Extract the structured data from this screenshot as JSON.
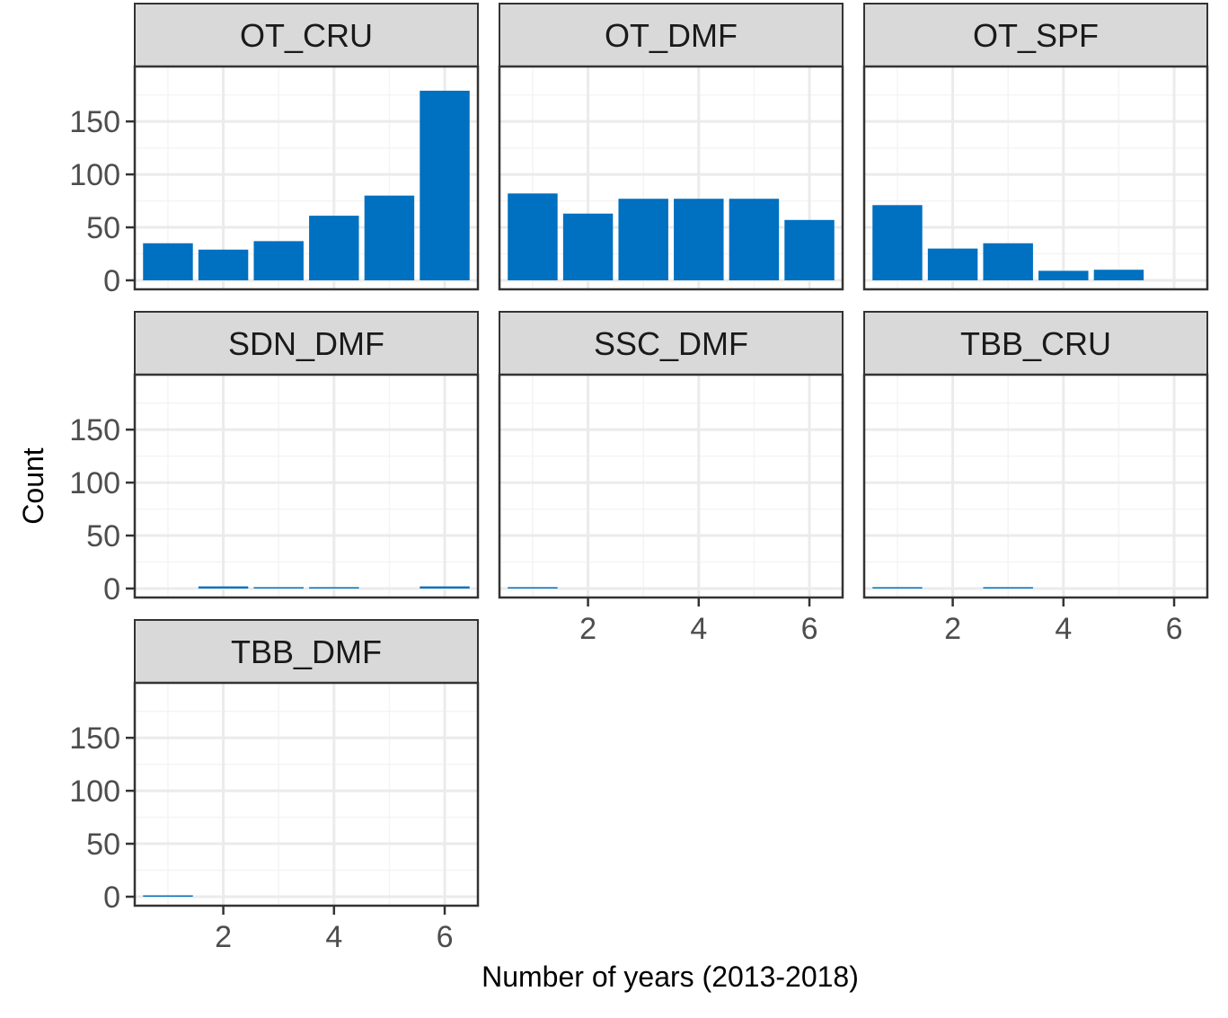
{
  "chart_data": {
    "type": "bar",
    "xlabel": "Number of years (2013-2018)",
    "ylabel": "Count",
    "ylim": [
      0,
      190
    ],
    "xlim": [
      0.4,
      6.6
    ],
    "x_ticks": [
      2,
      4,
      6
    ],
    "y_ticks": [
      0,
      50,
      100,
      150
    ],
    "grid": true,
    "bar_color": "#0070C0",
    "panels": [
      {
        "name": "OT_CRU",
        "x": [
          1,
          2,
          3,
          4,
          5,
          6
        ],
        "values": [
          35,
          29,
          37,
          61,
          80,
          179
        ]
      },
      {
        "name": "OT_DMF",
        "x": [
          1,
          2,
          3,
          4,
          5,
          6
        ],
        "values": [
          82,
          63,
          77,
          77,
          77,
          57
        ]
      },
      {
        "name": "OT_SPF",
        "x": [
          1,
          2,
          3,
          4,
          5,
          6
        ],
        "values": [
          71,
          30,
          35,
          9,
          10,
          0
        ]
      },
      {
        "name": "SDN_DMF",
        "x": [
          1,
          2,
          3,
          4,
          5,
          6
        ],
        "values": [
          0,
          2,
          1,
          1,
          0,
          2
        ]
      },
      {
        "name": "SSC_DMF",
        "x": [
          1,
          2,
          3,
          4,
          5,
          6
        ],
        "values": [
          1,
          0,
          0,
          0,
          0,
          0
        ]
      },
      {
        "name": "TBB_CRU",
        "x": [
          1,
          2,
          3,
          4,
          5,
          6
        ],
        "values": [
          1,
          0,
          1,
          0,
          0,
          0
        ]
      },
      {
        "name": "TBB_DMF",
        "x": [
          1,
          2,
          3,
          4,
          5,
          6
        ],
        "values": [
          1,
          0,
          0,
          0,
          0,
          0
        ]
      }
    ]
  }
}
